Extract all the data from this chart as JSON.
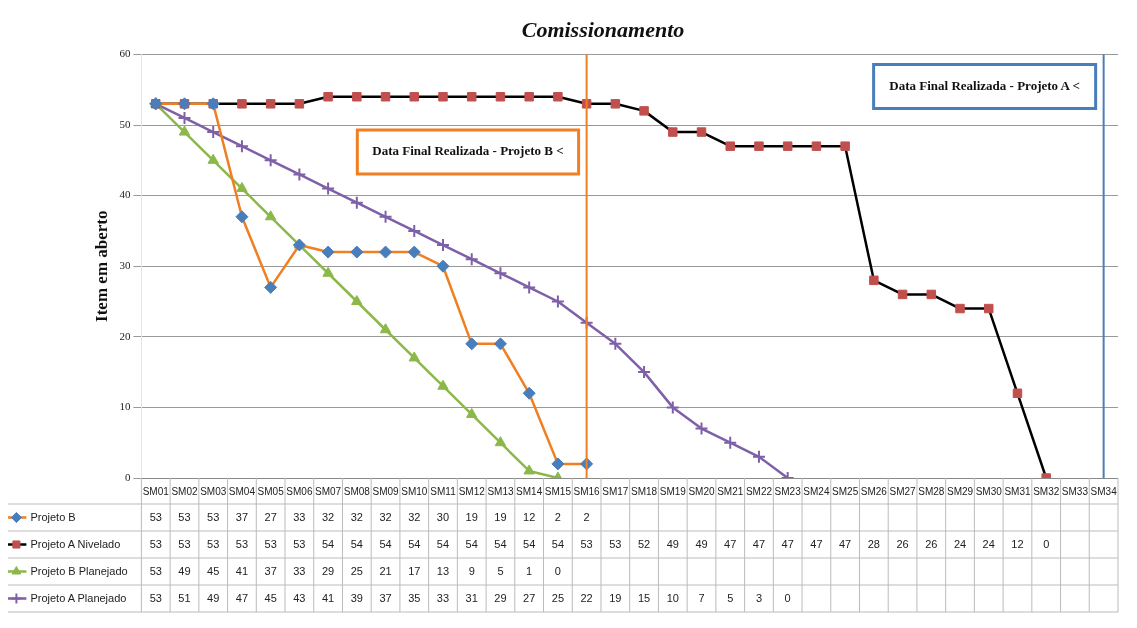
{
  "chart_data": {
    "type": "line",
    "title": "Comissionamento",
    "ylabel": "Item em aberto",
    "categories": [
      "SM01",
      "SM02",
      "SM03",
      "SM04",
      "SM05",
      "SM06",
      "SM07",
      "SM08",
      "SM09",
      "SM10",
      "SM11",
      "SM12",
      "SM13",
      "SM14",
      "SM15",
      "SM16",
      "SM17",
      "SM18",
      "SM19",
      "SM20",
      "SM21",
      "SM22",
      "SM23",
      "SM24",
      "SM25",
      "SM26",
      "SM27",
      "SM28",
      "SM29",
      "SM30",
      "SM31",
      "SM32",
      "SM33",
      "SM34"
    ],
    "series": [
      {
        "name": "Projeto B",
        "color": "#f07f22",
        "marker": "diamond",
        "values": [
          53,
          53,
          53,
          37,
          27,
          33,
          32,
          32,
          32,
          32,
          30,
          19,
          19,
          12,
          2,
          2,
          null,
          null,
          null,
          null,
          null,
          null,
          null,
          null,
          null,
          null,
          null,
          null,
          null,
          null,
          null,
          null,
          null,
          null
        ]
      },
      {
        "name": "Projeto A Nivelado",
        "color": "#000000",
        "marker": "square",
        "values": [
          53,
          53,
          53,
          53,
          53,
          53,
          54,
          54,
          54,
          54,
          54,
          54,
          54,
          54,
          54,
          53,
          53,
          52,
          49,
          49,
          47,
          47,
          47,
          47,
          47,
          28,
          26,
          26,
          24,
          24,
          12,
          0,
          null,
          null
        ]
      },
      {
        "name": "Projeto B Planejado",
        "color": "#8cb84a",
        "marker": "triangle",
        "values": [
          53,
          49,
          45,
          41,
          37,
          33,
          29,
          25,
          21,
          17,
          13,
          9,
          5,
          1,
          0,
          null,
          null,
          null,
          null,
          null,
          null,
          null,
          null,
          null,
          null,
          null,
          null,
          null,
          null,
          null,
          null,
          null,
          null,
          null
        ]
      },
      {
        "name": "Projeto A Planejado",
        "color": "#7e5fa8",
        "marker": "cross",
        "values": [
          53,
          51,
          49,
          47,
          45,
          43,
          41,
          39,
          37,
          35,
          33,
          31,
          29,
          27,
          25,
          22,
          19,
          15,
          10,
          7,
          5,
          3,
          0,
          null,
          null,
          null,
          null,
          null,
          null,
          null,
          null,
          null,
          null,
          null
        ]
      }
    ],
    "ylim": [
      0,
      60
    ],
    "yticks": [
      0,
      10,
      20,
      30,
      40,
      50,
      60
    ],
    "grid": "y",
    "legend": "bottom",
    "data_labels": true,
    "ref_lines": [
      {
        "axis": "x",
        "value": "SM16",
        "label": "Data Final Realizada - Projeto B <",
        "color": "#f07f22"
      },
      {
        "axis": "x",
        "value": "SM34",
        "label": "Data Final Realizada - Projeto A <",
        "color": "#4a7ebb"
      }
    ]
  }
}
